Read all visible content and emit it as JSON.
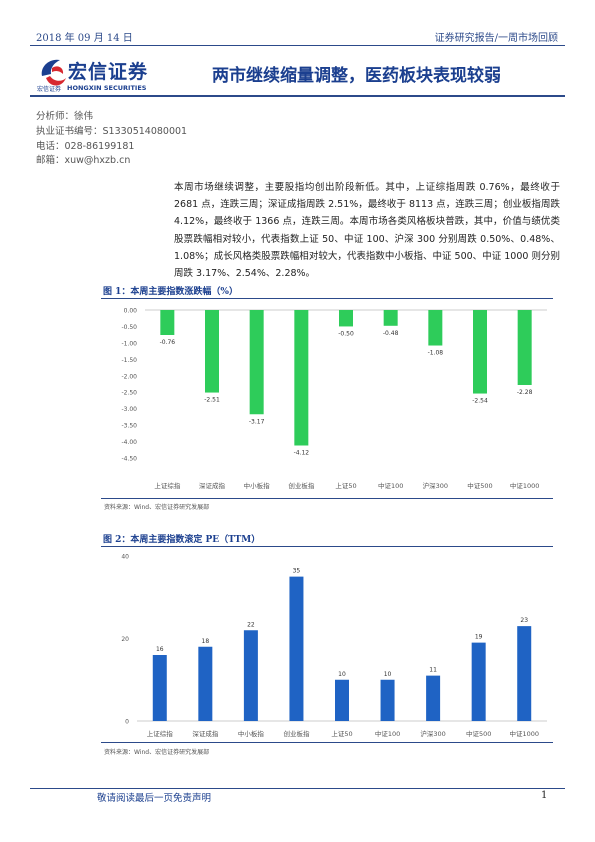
{
  "header": {
    "date": "2018 年 09 月 14 日",
    "report_type": "证券研究报告/一周市场回顾"
  },
  "brand": {
    "name_cn": "宏信证券",
    "name_small": "宏信证券",
    "name_en": "HONGXIN SECURITIES",
    "color": "#1b3f8f",
    "accent": "#d7282f"
  },
  "title": "两市继续缩量调整，医药板块表现较弱",
  "analyst": {
    "name": "分析师：徐伟",
    "license": "执业证书编号：S1330514080001",
    "phone": "电话：028-86199181",
    "email": "邮箱：xuw@hxzb.cn"
  },
  "summary": "本周市场继续调整，主要股指均创出阶段新低。其中，上证综指周跌 0.76%，最终收于 2681 点，连跌三周；深证成指周跌 2.51%，最终收于 8113 点，连跌三周；创业板指周跌 4.12%，最终收于 1366 点，连跌三周。本周市场各类风格板块普跌，其中，价值与绩优类股票跌幅相对较小，代表指数上证 50、中证 100、沪深 300 分别周跌 0.50%、0.48%、1.08%；成长风格类股票跌幅相对较大，代表指数中小板指、中证 500、中证 1000 则分别周跌 3.17%、2.54%、2.28%。",
  "figure1": {
    "title": "图 1：本周主要指数涨跌幅（%）",
    "source": "资料来源：Wind、宏信证券研究发展部"
  },
  "figure2": {
    "title": "图 2：本周主要指数滚定 PE（TTM）",
    "source": "资料来源：Wind、宏信证券研究发展部"
  },
  "chart_data": [
    {
      "type": "bar",
      "categories": [
        "上证综指",
        "深证成指",
        "中小板指",
        "创业板指",
        "上证50",
        "中证100",
        "沪深300",
        "中证500",
        "中证1000"
      ],
      "values": [
        -0.76,
        -2.51,
        -3.17,
        -4.12,
        -0.5,
        -0.48,
        -1.08,
        -2.54,
        -2.28
      ],
      "value_labels": [
        "-0.76",
        "-2.51",
        "-3.17",
        "-4.12",
        "-0.50",
        "-0.48",
        "-1.08",
        "-2.54",
        "-2.28"
      ],
      "ylim": [
        -4.5,
        0
      ],
      "yticks": [
        "0.00",
        "-0.50",
        "-1.00",
        "-1.50",
        "-2.00",
        "-2.50",
        "-3.00",
        "-3.50",
        "-4.00",
        "-4.50"
      ],
      "color": "#2ecc5a",
      "grid": false
    },
    {
      "type": "bar",
      "categories": [
        "上证综指",
        "深证成指",
        "中小板指",
        "创业板指",
        "上证50",
        "中证100",
        "沪深300",
        "中证500",
        "中证1000"
      ],
      "values": [
        16,
        18,
        22,
        35,
        10,
        10,
        11,
        19,
        23
      ],
      "value_labels": [
        "16",
        "18",
        "22",
        "35",
        "10",
        "10",
        "11",
        "19",
        "23"
      ],
      "ylim": [
        0,
        40
      ],
      "yticks": [
        "0",
        "20",
        "40"
      ],
      "color": "#1f63c4",
      "grid": false
    }
  ],
  "footer": {
    "disclaimer": "敬请阅读最后一页免责声明",
    "page": "1"
  }
}
